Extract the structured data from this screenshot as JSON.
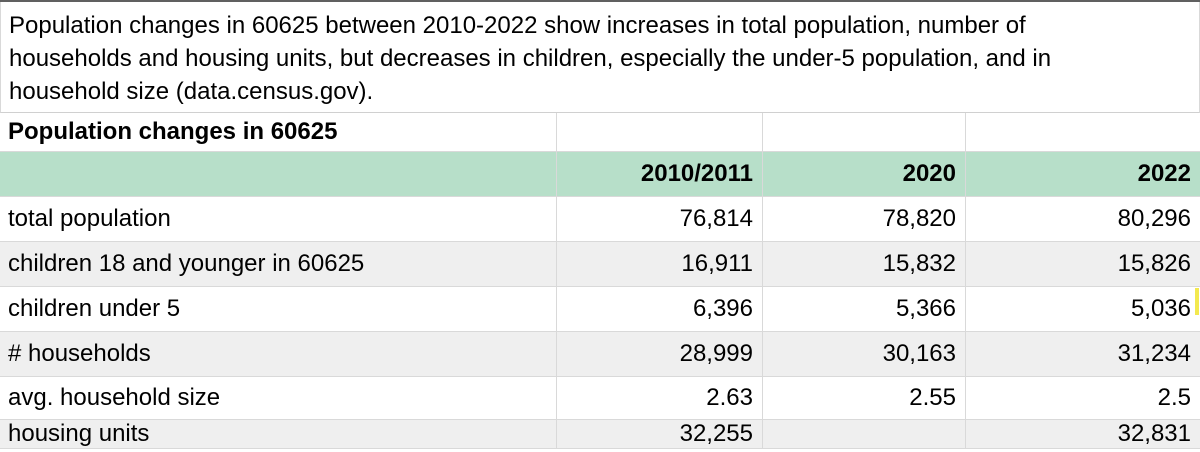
{
  "note": {
    "lines": [
      "Population changes in 60625 between 2010-2022 show increases in total population, number of",
      "households and housing units, but decreases in children, especially the under-5 population, and in",
      "household size (data.census.gov)."
    ]
  },
  "sheet": {
    "title": "Population changes in 60625",
    "header": {
      "col1": "2010/2011",
      "col2": "2020",
      "col3": "2022"
    },
    "rows": [
      {
        "label": "total population",
        "values": [
          "76,814",
          "78,820",
          "80,296"
        ]
      },
      {
        "label": "children 18 and younger in 60625",
        "values": [
          "16,911",
          "15,832",
          "15,826"
        ]
      },
      {
        "label": "children under 5",
        "values": [
          "6,396",
          "5,366",
          "5,036"
        ]
      },
      {
        "label": "# households",
        "values": [
          "28,999",
          "30,163",
          "31,234"
        ]
      },
      {
        "label": "avg. household size",
        "values": [
          "2.63",
          "2.55",
          "2.5"
        ]
      },
      {
        "label": "housing units",
        "values": [
          "32,255",
          "",
          "32,831"
        ]
      }
    ]
  },
  "colors": {
    "header_bg": "#b7dfc9",
    "alt_row_bg": "#efefef",
    "gridline": "#d9d9d9",
    "marker_yellow": "#f3e94f"
  }
}
